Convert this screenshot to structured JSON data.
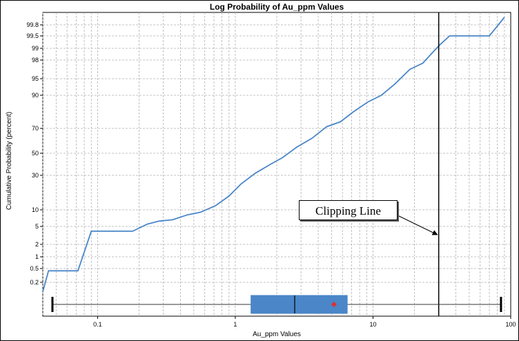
{
  "chart_data": {
    "type": "line",
    "title": "Log Probability of Au_ppm Values",
    "xlabel": "Au_ppm Values",
    "ylabel": "Cumulative Probability (percent)",
    "x_scale": "log",
    "y_scale": "probability",
    "xlim": [
      0.04,
      100
    ],
    "ylim": [
      0.1,
      99.9
    ],
    "x_ticks": [
      {
        "value": 0.1,
        "label": "0.1"
      },
      {
        "value": 1,
        "label": "1"
      },
      {
        "value": 10,
        "label": "10"
      },
      {
        "value": 100,
        "label": "100"
      }
    ],
    "y_ticks": [
      {
        "value": 0.2,
        "label": "0.2"
      },
      {
        "value": 0.5,
        "label": "0.5"
      },
      {
        "value": 1,
        "label": "1"
      },
      {
        "value": 2,
        "label": "2"
      },
      {
        "value": 5,
        "label": "5"
      },
      {
        "value": 10,
        "label": "10"
      },
      {
        "value": 30,
        "label": "30"
      },
      {
        "value": 50,
        "label": "50"
      },
      {
        "value": 70,
        "label": "70"
      },
      {
        "value": 90,
        "label": "90"
      },
      {
        "value": 95,
        "label": "95"
      },
      {
        "value": 98,
        "label": "98"
      },
      {
        "value": 99,
        "label": "99"
      },
      {
        "value": 99.5,
        "label": "99.5"
      },
      {
        "value": 99.8,
        "label": "99.8"
      }
    ],
    "grid": true,
    "series": [
      {
        "color": "#4a86c8",
        "points": [
          [
            0.04,
            0.12
          ],
          [
            0.044,
            0.45
          ],
          [
            0.05,
            0.45
          ],
          [
            0.072,
            0.45
          ],
          [
            0.09,
            4.2
          ],
          [
            0.18,
            4.2
          ],
          [
            0.23,
            5.7
          ],
          [
            0.28,
            6.6
          ],
          [
            0.35,
            7.0
          ],
          [
            0.45,
            8.5
          ],
          [
            0.56,
            9.3
          ],
          [
            0.72,
            12.5
          ],
          [
            0.9,
            18
          ],
          [
            1.1,
            25
          ],
          [
            1.4,
            32
          ],
          [
            1.8,
            40
          ],
          [
            2.2,
            46
          ],
          [
            2.8,
            55
          ],
          [
            3.6,
            62
          ],
          [
            4.6,
            71
          ],
          [
            5.8,
            74
          ],
          [
            7.2,
            80
          ],
          [
            9.2,
            86
          ],
          [
            11.5,
            90
          ],
          [
            14.5,
            93.5
          ],
          [
            18.5,
            96.5
          ],
          [
            23,
            97.5
          ],
          [
            30,
            99.1
          ],
          [
            36,
            99.5
          ],
          [
            70,
            99.5
          ],
          [
            90,
            99.95
          ]
        ]
      }
    ],
    "clipping_line": {
      "x": 30,
      "label": "Clipping Line"
    },
    "boxplot": {
      "min": 0.047,
      "q1": 1.3,
      "median": 2.7,
      "q3": 6.5,
      "max": 85,
      "mean": 5.2,
      "box_color": "#4a86c8",
      "mean_color": "#e0302a"
    }
  }
}
